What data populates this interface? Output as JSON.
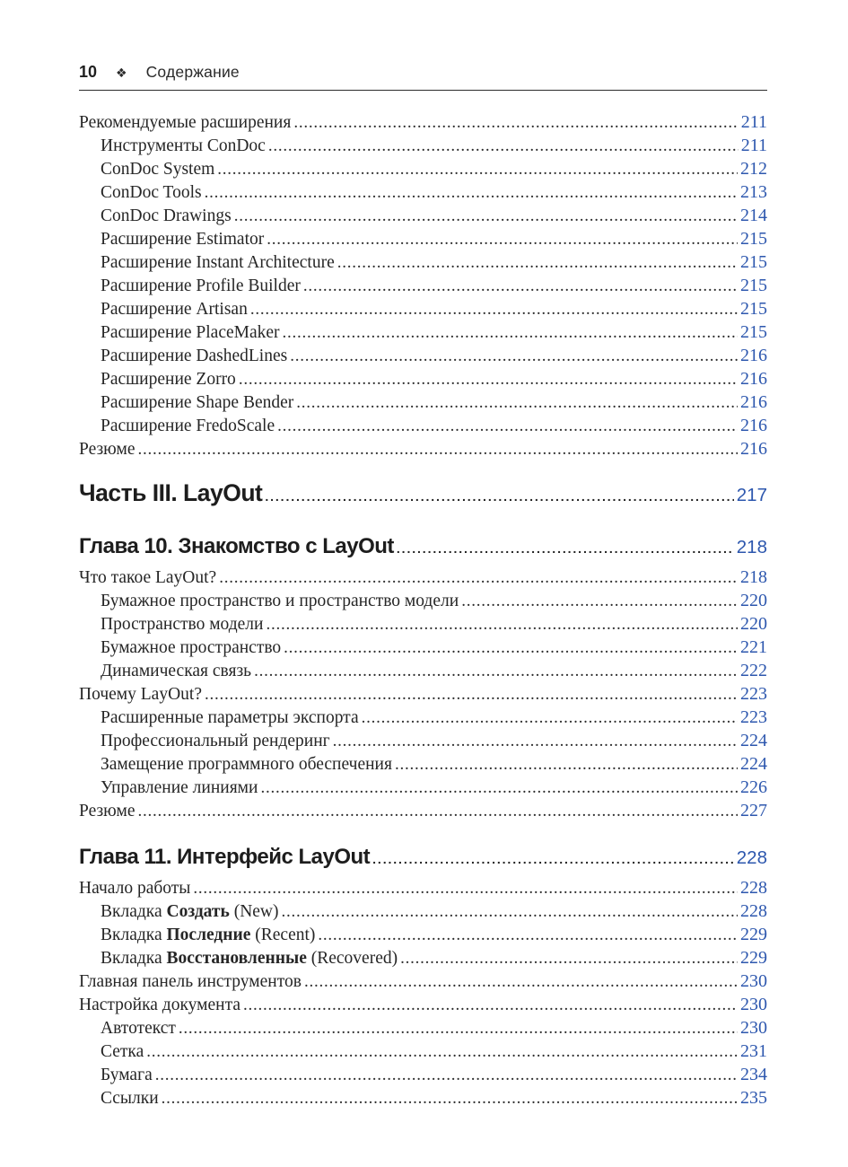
{
  "page_header": {
    "page_number": "10",
    "icon": "four-diamonds",
    "icon_glyph": "❖",
    "title": "Содержание"
  },
  "colors": {
    "page_number_blue": "#2d57ae",
    "text": "#262626",
    "heading": "#1d1d1d"
  },
  "toc": {
    "blocks": [
      {
        "type": "entries",
        "items": [
          {
            "text": "Рекомендуемые расширения",
            "page": "211",
            "indent": 0
          },
          {
            "text": "Инструменты ConDoc",
            "page": "211",
            "indent": 1
          },
          {
            "text": "ConDoc System",
            "page": "212",
            "indent": 1
          },
          {
            "text": "ConDoc Tools",
            "page": "213",
            "indent": 1
          },
          {
            "text": "ConDoc Drawings",
            "page": "214",
            "indent": 1
          },
          {
            "text": "Расширение Estimator",
            "page": "215",
            "indent": 1
          },
          {
            "text": "Расширение Instant Architecture",
            "page": "215",
            "indent": 1
          },
          {
            "text": "Расширение Profile Builder",
            "page": "215",
            "indent": 1
          },
          {
            "text": "Расширение Artisan",
            "page": "215",
            "indent": 1
          },
          {
            "text": "Расширение PlaceMaker",
            "page": "215",
            "indent": 1
          },
          {
            "text": "Расширение DashedLines",
            "page": "216",
            "indent": 1
          },
          {
            "text": "Расширение Zorro",
            "page": "216",
            "indent": 1
          },
          {
            "text": "Расширение Shape Bender",
            "page": "216",
            "indent": 1
          },
          {
            "text": "Расширение FredoScale",
            "page": "216",
            "indent": 1
          },
          {
            "text": "Резюме",
            "page": "216",
            "indent": 0
          }
        ]
      },
      {
        "type": "part-heading",
        "text": "Часть III. LayOut",
        "page": "217"
      },
      {
        "type": "chapter-heading",
        "text": "Глава 10. Знакомство с LayOut",
        "page": "218"
      },
      {
        "type": "entries",
        "items": [
          {
            "text": "Что такое LayOut?",
            "page": "218",
            "indent": 0
          },
          {
            "text": "Бумажное пространство и пространство модели",
            "page": "220",
            "indent": 1
          },
          {
            "text": "Пространство модели",
            "page": "220",
            "indent": 1
          },
          {
            "text": "Бумажное пространство",
            "page": "221",
            "indent": 1
          },
          {
            "text": "Динамическая связь",
            "page": "222",
            "indent": 1
          },
          {
            "text": "Почему LayOut?",
            "page": "223",
            "indent": 0
          },
          {
            "text": "Расширенные параметры экспорта",
            "page": "223",
            "indent": 1
          },
          {
            "text": "Профессиональный рендеринг",
            "page": "224",
            "indent": 1
          },
          {
            "text": "Замещение программного обеспечения",
            "page": "224",
            "indent": 1
          },
          {
            "text": "Управление линиями",
            "page": "226",
            "indent": 1
          },
          {
            "text": "Резюме",
            "page": "227",
            "indent": 0
          }
        ]
      },
      {
        "type": "chapter-heading",
        "text": "Глава 11. Интерфейс LayOut",
        "page": "228"
      },
      {
        "type": "entries",
        "items": [
          {
            "text": "Начало работы",
            "page": "228",
            "indent": 0
          },
          {
            "text": "Вкладка ",
            "bold": "Создать",
            "after": " (New)",
            "page": "228",
            "indent": 1
          },
          {
            "text": "Вкладка ",
            "bold": "Последние",
            "after": " (Recent)",
            "page": "229",
            "indent": 1
          },
          {
            "text": "Вкладка ",
            "bold": "Восстановленные",
            "after": " (Recovered)",
            "page": "229",
            "indent": 1
          },
          {
            "text": "Главная панель инструментов",
            "page": "230",
            "indent": 0
          },
          {
            "text": "Настройка документа",
            "page": "230",
            "indent": 0
          },
          {
            "text": "Автотекст",
            "page": "230",
            "indent": 1
          },
          {
            "text": "Сетка",
            "page": "231",
            "indent": 1
          },
          {
            "text": "Бумага",
            "page": "234",
            "indent": 1
          },
          {
            "text": "Ссылки",
            "page": "235",
            "indent": 1
          }
        ]
      }
    ]
  }
}
